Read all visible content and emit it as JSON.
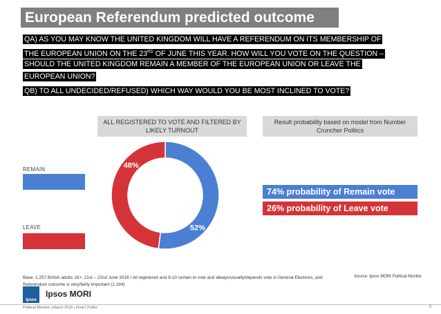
{
  "title": "European Referendum predicted outcome",
  "question_a": {
    "line1": "QA) AS YOU MAY KNOW THE UNITED KINGDOM WILL HAVE A REFERENDUM ON ITS MEMBERSHIP OF",
    "line2_pre": "THE EUROPEAN UNION ON THE 23",
    "line2_sup": "RD",
    "line2_post": " OF JUNE THIS YEAR. HOW WILL YOU VOTE ON THE QUESTION –",
    "line3": "SHOULD THE UNITED KINGDOM REMAIN A MEMBER OF THE EUROPEAN UNION OR LEAVE THE",
    "line4": "EUROPEAN UNION?"
  },
  "question_b": "QB) TO ALL UNDECIDED/REFUSED) WHICH WAY WOULD YOU BE MOST INCLINED TO VOTE?",
  "left_header": "ALL REGISTERED TO VOTE AND FILTERED BY LIKELY TURNOUT",
  "right_header": "Result probability based on model from Number Cruncher Politics",
  "legend": {
    "remain": "REMAIN",
    "leave": "LEAVE"
  },
  "colors": {
    "remain": "#4a7fd4",
    "leave": "#d43338",
    "title_bg": "#7f7f7f",
    "header_bg": "#d9d9d9"
  },
  "probabilities": {
    "remain": "74% probability of Remain vote",
    "leave": "26% probability of  Leave vote"
  },
  "chart_data": {
    "type": "pie",
    "donut": true,
    "labels": [
      "REMAIN",
      "LEAVE"
    ],
    "values": [
      52,
      48
    ],
    "value_labels": [
      "52%",
      "48%"
    ],
    "colors": [
      "#4a7fd4",
      "#d43338"
    ]
  },
  "footnote": "Base: 1,257 British adults 18+, 21st – 22nd June 2016 / All registered and 9-10 certain to vote and always/usually/depends vote in General Elections, and Referendum outcome is very/fairly important (1,194)",
  "source": "Source: Ipsos MORI Political Monitor",
  "logo": {
    "mark": "Ipsos",
    "name": "Ipsos MORI"
  },
  "bottom_left": "Political Monitor | March 2016 | Final | Public",
  "page_number": "3"
}
